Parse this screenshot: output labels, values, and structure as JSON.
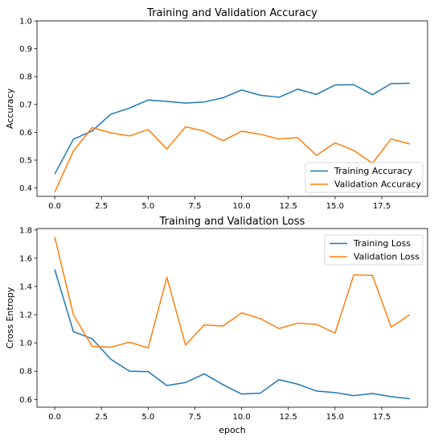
{
  "colors": {
    "training": "#1f77b4",
    "validation": "#ff7f0e"
  },
  "chart_data": [
    {
      "type": "line",
      "title": "Training and Validation Accuracy",
      "xlabel": "",
      "ylabel": "Accuracy",
      "xlim": [
        -0.95,
        19.95
      ],
      "ylim": [
        0.37,
        1.0
      ],
      "xticks": [
        0.0,
        2.5,
        5.0,
        7.5,
        10.0,
        12.5,
        15.0,
        17.5
      ],
      "xtick_labels": [
        "0.0",
        "2.5",
        "5.0",
        "7.5",
        "10.0",
        "12.5",
        "15.0",
        "17.5"
      ],
      "yticks": [
        0.4,
        0.5,
        0.6,
        0.7,
        0.8,
        0.9,
        1.0
      ],
      "ytick_labels": [
        "0.4",
        "0.5",
        "0.6",
        "0.7",
        "0.8",
        "0.9",
        "1.0"
      ],
      "legend_position": "lower-right",
      "grid": false,
      "x": [
        0,
        1,
        2,
        3,
        4,
        5,
        6,
        7,
        8,
        9,
        10,
        11,
        12,
        13,
        14,
        15,
        16,
        17,
        18,
        19
      ],
      "series": [
        {
          "name": "Training Accuracy",
          "color_key": "training",
          "values": [
            0.45,
            0.575,
            0.605,
            0.665,
            0.687,
            0.716,
            0.711,
            0.705,
            0.709,
            0.724,
            0.752,
            0.733,
            0.726,
            0.755,
            0.736,
            0.77,
            0.771,
            0.735,
            0.775,
            0.776
          ]
        },
        {
          "name": "Validation Accuracy",
          "color_key": "validation",
          "values": [
            0.385,
            0.533,
            0.617,
            0.598,
            0.587,
            0.61,
            0.54,
            0.62,
            0.604,
            0.57,
            0.604,
            0.593,
            0.576,
            0.581,
            0.517,
            0.562,
            0.535,
            0.489,
            0.576,
            0.558
          ]
        }
      ]
    },
    {
      "type": "line",
      "title": "Training and Validation Loss",
      "xlabel": "epoch",
      "ylabel": "Cross Entropy",
      "xlim": [
        -0.95,
        19.95
      ],
      "ylim": [
        0.545,
        1.81
      ],
      "xticks": [
        0.0,
        2.5,
        5.0,
        7.5,
        10.0,
        12.5,
        15.0,
        17.5
      ],
      "xtick_labels": [
        "0.0",
        "2.5",
        "5.0",
        "7.5",
        "10.0",
        "12.5",
        "15.0",
        "17.5"
      ],
      "yticks": [
        0.6,
        0.8,
        1.0,
        1.2,
        1.4,
        1.6,
        1.8
      ],
      "ytick_labels": [
        "0.6",
        "0.8",
        "1.0",
        "1.2",
        "1.4",
        "1.6",
        "1.8"
      ],
      "legend_position": "upper-right",
      "grid": false,
      "x": [
        0,
        1,
        2,
        3,
        4,
        5,
        6,
        7,
        8,
        9,
        10,
        11,
        12,
        13,
        14,
        15,
        16,
        17,
        18,
        19
      ],
      "series": [
        {
          "name": "Training Loss",
          "color_key": "training",
          "values": [
            1.52,
            1.08,
            1.03,
            0.885,
            0.8,
            0.797,
            0.698,
            0.72,
            0.781,
            0.705,
            0.638,
            0.645,
            0.74,
            0.708,
            0.66,
            0.648,
            0.627,
            0.642,
            0.62,
            0.605
          ]
        },
        {
          "name": "Validation Loss",
          "color_key": "validation",
          "values": [
            1.75,
            1.2,
            0.975,
            0.97,
            1.005,
            0.965,
            1.465,
            0.985,
            1.128,
            1.12,
            1.213,
            1.172,
            1.102,
            1.14,
            1.132,
            1.07,
            1.482,
            1.478,
            1.112,
            1.2
          ]
        }
      ]
    }
  ]
}
